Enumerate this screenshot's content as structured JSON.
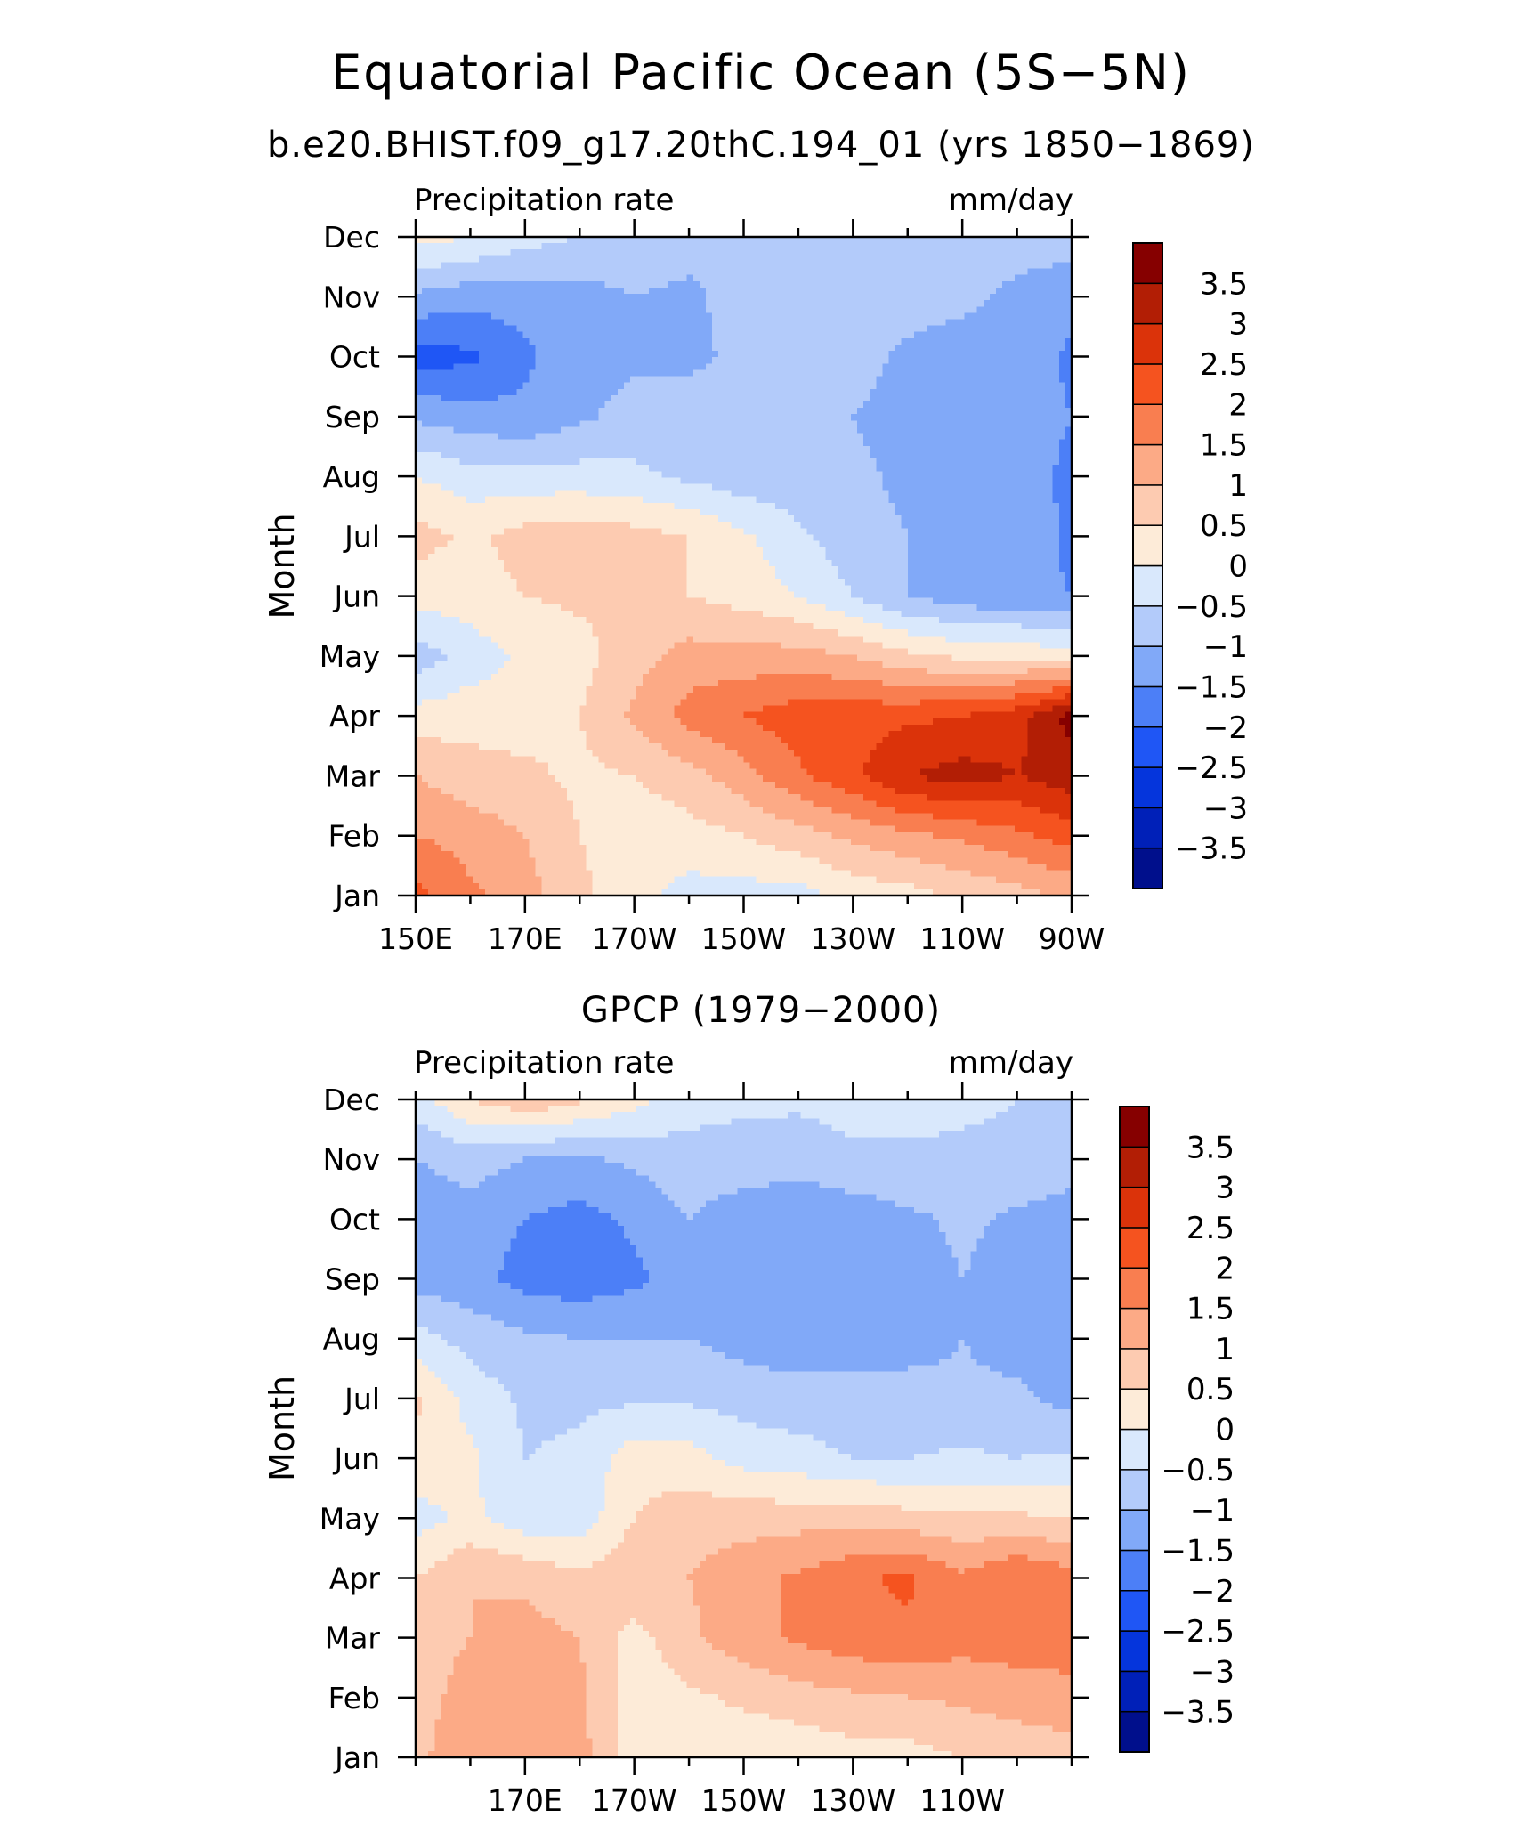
{
  "title": "Equatorial Pacific Ocean (5S−5N)",
  "colors": {
    "levels": [
      "#000f8c",
      "#0020b8",
      "#0535dc",
      "#1f56f5",
      "#4c7ff7",
      "#81a9f8",
      "#b3cbfa",
      "#d9e8fc",
      "#fdebd8",
      "#fdcbb1",
      "#fcaa86",
      "#f97e50",
      "#f5531f",
      "#db330a",
      "#b21e05",
      "#860000"
    ]
  },
  "chart_data": [
    {
      "type": "heatmap",
      "subtitle": "b.e20.BHIST.f09_g17.20thC.194_01 (yrs 1850−1869)",
      "left_label": "Precipitation rate",
      "right_label": "mm/day",
      "ylabel": "Month",
      "xlabel": "",
      "x_ticks": [
        "150E",
        "170E",
        "170W",
        "150W",
        "130W",
        "110W",
        "90W"
      ],
      "y_ticks": [
        "Jan",
        "Feb",
        "Mar",
        "Apr",
        "May",
        "Jun",
        "Jul",
        "Aug",
        "Sep",
        "Oct",
        "Nov",
        "Dec"
      ],
      "colorbar_labels": [
        "3.5",
        "3",
        "2.5",
        "2",
        "1.5",
        "1",
        "0.5",
        "0",
        "−0.5",
        "−1",
        "−1.5",
        "−2",
        "−2.5",
        "−3",
        "−3.5"
      ],
      "colorbar_levels": [
        -3.5,
        -3,
        -2.5,
        -2,
        -1.5,
        -1,
        -0.5,
        0,
        0.5,
        1,
        1.5,
        2,
        2.5,
        3,
        3.5
      ],
      "x": [
        150,
        160,
        170,
        180,
        190,
        200,
        210,
        220,
        230,
        240,
        250,
        260,
        270
      ],
      "y": [
        "Jan",
        "Feb",
        "Mar",
        "Apr",
        "May",
        "Jun",
        "Jul",
        "Aug",
        "Sep",
        "Oct",
        "Nov",
        "Dec"
      ],
      "z": [
        [
          2.2,
          1.6,
          1.2,
          0.6,
          0.2,
          -0.2,
          -0.2,
          -0.2,
          0.2,
          0.3,
          0.6,
          0.8,
          1.1
        ],
        [
          1.5,
          1.3,
          1.0,
          0.5,
          0.2,
          0.3,
          0.5,
          0.8,
          1.1,
          1.4,
          1.6,
          1.9,
          2.2
        ],
        [
          1.0,
          0.7,
          0.6,
          0.4,
          0.5,
          0.8,
          1.3,
          1.9,
          2.4,
          3.0,
          3.2,
          3.0,
          3.3
        ],
        [
          0.2,
          0.3,
          0.3,
          0.5,
          1.1,
          1.7,
          2.0,
          2.3,
          2.3,
          2.4,
          2.5,
          2.8,
          3.7
        ],
        [
          -0.8,
          -0.3,
          0.1,
          0.3,
          0.8,
          1.2,
          1.2,
          1.2,
          1.0,
          0.6,
          0.4,
          0.4,
          0.2
        ],
        [
          0.2,
          0.3,
          0.5,
          0.6,
          0.6,
          0.5,
          0.3,
          0.0,
          -0.5,
          -1.0,
          -1.3,
          -1.4,
          -1.5
        ],
        [
          0.7,
          0.4,
          0.7,
          0.8,
          0.7,
          0.5,
          0.1,
          -0.4,
          -0.8,
          -1.0,
          -1.1,
          -1.2,
          -1.6
        ],
        [
          0.0,
          -0.3,
          -0.3,
          -0.3,
          -0.4,
          -0.6,
          -0.8,
          -0.8,
          -0.9,
          -1.1,
          -1.2,
          -1.3,
          -1.6
        ],
        [
          -1.1,
          -1.3,
          -1.4,
          -1.1,
          -0.8,
          -0.8,
          -0.8,
          -0.9,
          -1.0,
          -1.2,
          -1.3,
          -1.3,
          -1.5
        ],
        [
          -2.3,
          -2.1,
          -1.6,
          -1.2,
          -1.1,
          -1.1,
          -0.9,
          -0.8,
          -0.8,
          -1.1,
          -1.2,
          -1.2,
          -1.6
        ],
        [
          -1.1,
          -1.3,
          -1.3,
          -1.2,
          -1.0,
          -1.1,
          -0.8,
          -0.8,
          -0.8,
          -0.8,
          -0.9,
          -1.1,
          -1.3
        ],
        [
          0.2,
          0.0,
          -0.3,
          -0.5,
          -0.7,
          -0.8,
          -0.8,
          -0.8,
          -0.8,
          -0.8,
          -0.8,
          -0.8,
          -0.8
        ]
      ]
    },
    {
      "type": "heatmap",
      "subtitle": "GPCP (1979−2000)",
      "left_label": "Precipitation rate",
      "right_label": "mm/day",
      "ylabel": "Month",
      "xlabel": "",
      "x_ticks": [
        "170E",
        "170W",
        "150W",
        "130W",
        "110W"
      ],
      "y_ticks": [
        "Jan",
        "Feb",
        "Mar",
        "Apr",
        "May",
        "Jun",
        "Jul",
        "Aug",
        "Sep",
        "Oct",
        "Nov",
        "Dec"
      ],
      "colorbar_labels": [
        "3.5",
        "3",
        "2.5",
        "2",
        "1.5",
        "1",
        "0.5",
        "0",
        "−0.5",
        "−1",
        "−1.5",
        "−2",
        "−2.5",
        "−3",
        "−3.5"
      ],
      "colorbar_levels": [
        -3.5,
        -3,
        -2.5,
        -2,
        -1.5,
        -1,
        -0.5,
        0,
        0.5,
        1,
        1.5,
        2,
        2.5,
        3,
        3.5
      ],
      "x": [
        150,
        160,
        170,
        180,
        190,
        200,
        210,
        220,
        230,
        240,
        250,
        260,
        270
      ],
      "y": [
        "Jan",
        "Feb",
        "Mar",
        "Apr",
        "May",
        "Jun",
        "Jul",
        "Aug",
        "Sep",
        "Oct",
        "Nov",
        "Dec"
      ],
      "z": [
        [
          0.9,
          1.3,
          1.5,
          1.2,
          0.2,
          0.2,
          0.1,
          0.1,
          0.3,
          0.3,
          0.5,
          0.7,
          0.8
        ],
        [
          0.8,
          1.2,
          1.3,
          1.1,
          0.2,
          0.4,
          0.6,
          0.8,
          0.9,
          1.0,
          1.1,
          1.2,
          1.3
        ],
        [
          0.8,
          1.0,
          1.2,
          1.0,
          0.3,
          0.9,
          1.3,
          1.6,
          1.8,
          1.9,
          1.7,
          1.8,
          1.8
        ],
        [
          0.5,
          1.0,
          0.9,
          0.6,
          0.9,
          1.0,
          1.3,
          1.6,
          1.9,
          2.1,
          1.6,
          2.0,
          1.7
        ],
        [
          -0.2,
          0.1,
          -0.3,
          -0.3,
          0.5,
          0.8,
          0.8,
          0.8,
          0.8,
          0.7,
          0.6,
          0.6,
          0.5
        ],
        [
          0.4,
          0.1,
          -0.5,
          -0.4,
          0.3,
          0.2,
          -0.2,
          -0.3,
          -0.5,
          -0.5,
          -0.4,
          -0.5,
          -0.4
        ],
        [
          0.6,
          -0.2,
          -0.6,
          -0.6,
          -0.6,
          -0.6,
          -0.7,
          -0.8,
          -0.8,
          -0.8,
          -0.9,
          -0.9,
          -1.2
        ],
        [
          -0.3,
          -0.7,
          -0.9,
          -1.0,
          -1.0,
          -1.0,
          -1.2,
          -1.3,
          -1.3,
          -1.2,
          -1.0,
          -1.2,
          -1.4
        ],
        [
          -1.2,
          -1.3,
          -1.7,
          -1.8,
          -1.6,
          -1.3,
          -1.5,
          -1.4,
          -1.4,
          -1.3,
          -1.0,
          -1.2,
          -1.4
        ],
        [
          -1.3,
          -1.2,
          -1.5,
          -1.7,
          -1.4,
          -1.0,
          -1.3,
          -1.4,
          -1.3,
          -1.1,
          -0.9,
          -1.1,
          -1.3
        ],
        [
          -1.0,
          -0.8,
          -1.0,
          -1.1,
          -0.9,
          -0.7,
          -0.7,
          -0.8,
          -0.6,
          -0.6,
          -0.6,
          -0.6,
          -0.7
        ],
        [
          -0.2,
          0.5,
          0.9,
          0.6,
          0.2,
          -0.3,
          -0.4,
          -0.4,
          -0.3,
          -0.3,
          -0.4,
          -0.5,
          -0.5
        ]
      ]
    }
  ]
}
